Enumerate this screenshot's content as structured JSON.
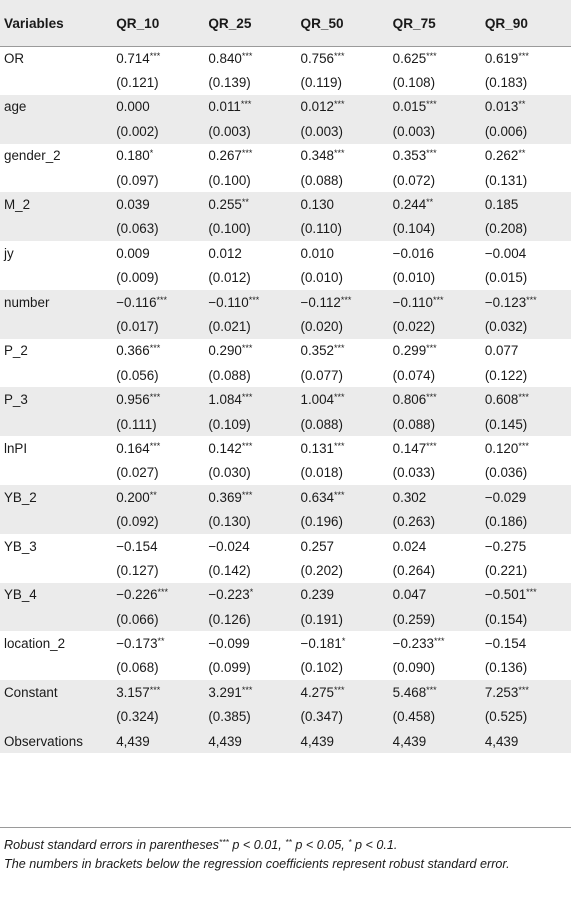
{
  "table": {
    "headers": [
      "Variables",
      "QR_10",
      "QR_25",
      "QR_50",
      "QR_75",
      "QR_90"
    ],
    "rows": [
      {
        "name": "OR",
        "coef": [
          "0.714",
          "0.840",
          "0.756",
          "0.625",
          "0.619"
        ],
        "stars": [
          "***",
          "***",
          "***",
          "***",
          "***"
        ],
        "se": [
          "(0.121)",
          "(0.139)",
          "(0.119)",
          "(0.108)",
          "(0.183)"
        ]
      },
      {
        "name": "age",
        "coef": [
          "0.000",
          "0.011",
          "0.012",
          "0.015",
          "0.013"
        ],
        "stars": [
          "",
          "***",
          "***",
          "***",
          "**"
        ],
        "se": [
          "(0.002)",
          "(0.003)",
          "(0.003)",
          "(0.003)",
          "(0.006)"
        ]
      },
      {
        "name": "gender_2",
        "coef": [
          "0.180",
          "0.267",
          "0.348",
          "0.353",
          "0.262"
        ],
        "stars": [
          "*",
          "***",
          "***",
          "***",
          "**"
        ],
        "se": [
          "(0.097)",
          "(0.100)",
          "(0.088)",
          "(0.072)",
          "(0.131)"
        ]
      },
      {
        "name": "M_2",
        "coef": [
          "0.039",
          "0.255",
          "0.130",
          "0.244",
          "0.185"
        ],
        "stars": [
          "",
          "**",
          "",
          "**",
          ""
        ],
        "se": [
          "(0.063)",
          "(0.100)",
          "(0.110)",
          "(0.104)",
          "(0.208)"
        ]
      },
      {
        "name": "jy",
        "coef": [
          "0.009",
          "0.012",
          "0.010",
          "−0.016",
          "−0.004"
        ],
        "stars": [
          "",
          "",
          "",
          "",
          ""
        ],
        "se": [
          "(0.009)",
          "(0.012)",
          "(0.010)",
          "(0.010)",
          "(0.015)"
        ]
      },
      {
        "name": "number",
        "coef": [
          "−0.116",
          "−0.110",
          "−0.112",
          "−0.110",
          "−0.123"
        ],
        "stars": [
          "***",
          "***",
          "***",
          "***",
          "***"
        ],
        "se": [
          "(0.017)",
          "(0.021)",
          "(0.020)",
          "(0.022)",
          "(0.032)"
        ]
      },
      {
        "name": "P_2",
        "coef": [
          "0.366",
          "0.290",
          "0.352",
          "0.299",
          "0.077"
        ],
        "stars": [
          "***",
          "***",
          "***",
          "***",
          ""
        ],
        "se": [
          "(0.056)",
          "(0.088)",
          "(0.077)",
          "(0.074)",
          "(0.122)"
        ]
      },
      {
        "name": "P_3",
        "coef": [
          "0.956",
          "1.084",
          "1.004",
          "0.806",
          "0.608"
        ],
        "stars": [
          "***",
          "***",
          "***",
          "***",
          "***"
        ],
        "se": [
          "(0.111)",
          "(0.109)",
          "(0.088)",
          "(0.088)",
          "(0.145)"
        ]
      },
      {
        "name": "lnPI",
        "coef": [
          "0.164",
          "0.142",
          "0.131",
          "0.147",
          "0.120"
        ],
        "stars": [
          "***",
          "***",
          "***",
          "***",
          "***"
        ],
        "se": [
          "(0.027)",
          "(0.030)",
          "(0.018)",
          "(0.033)",
          "(0.036)"
        ]
      },
      {
        "name": "YB_2",
        "coef": [
          "0.200",
          "0.369",
          "0.634",
          "0.302",
          "−0.029"
        ],
        "stars": [
          "**",
          "***",
          "***",
          "",
          ""
        ],
        "se": [
          "(0.092)",
          "(0.130)",
          "(0.196)",
          "(0.263)",
          "(0.186)"
        ]
      },
      {
        "name": "YB_3",
        "coef": [
          "−0.154",
          "−0.024",
          "0.257",
          "0.024",
          "−0.275"
        ],
        "stars": [
          "",
          "",
          "",
          "",
          ""
        ],
        "se": [
          "(0.127)",
          "(0.142)",
          "(0.202)",
          "(0.264)",
          "(0.221)"
        ]
      },
      {
        "name": "YB_4",
        "coef": [
          "−0.226",
          "−0.223",
          "0.239",
          "0.047",
          "−0.501"
        ],
        "stars": [
          "***",
          "*",
          "",
          "",
          "***"
        ],
        "se": [
          "(0.066)",
          "(0.126)",
          "(0.191)",
          "(0.259)",
          "(0.154)"
        ]
      },
      {
        "name": "location_2",
        "coef": [
          "−0.173",
          "−0.099",
          "−0.181",
          "−0.233",
          "−0.154"
        ],
        "stars": [
          "**",
          "",
          "*",
          "***",
          ""
        ],
        "se": [
          "(0.068)",
          "(0.099)",
          "(0.102)",
          "(0.090)",
          "(0.136)"
        ]
      },
      {
        "name": "Constant",
        "coef": [
          "3.157",
          "3.291",
          "4.275",
          "5.468",
          "7.253"
        ],
        "stars": [
          "***",
          "***",
          "***",
          "***",
          "***"
        ],
        "se": [
          "(0.324)",
          "(0.385)",
          "(0.347)",
          "(0.458)",
          "(0.525)"
        ]
      }
    ],
    "observations": {
      "name": "Observations",
      "values": [
        "4,439",
        "4,439",
        "4,439",
        "4,439",
        "4,439"
      ]
    }
  },
  "notes": {
    "line1_a": "Robust standard errors in parentheses",
    "line1_s1": "***",
    "line1_b": " p < 0.01, ",
    "line1_s2": "**",
    "line1_c": " p < 0.05, ",
    "line1_s3": "*",
    "line1_d": " p < 0.1.",
    "line2": "The numbers in brackets below the regression coefficients represent robust standard error."
  }
}
